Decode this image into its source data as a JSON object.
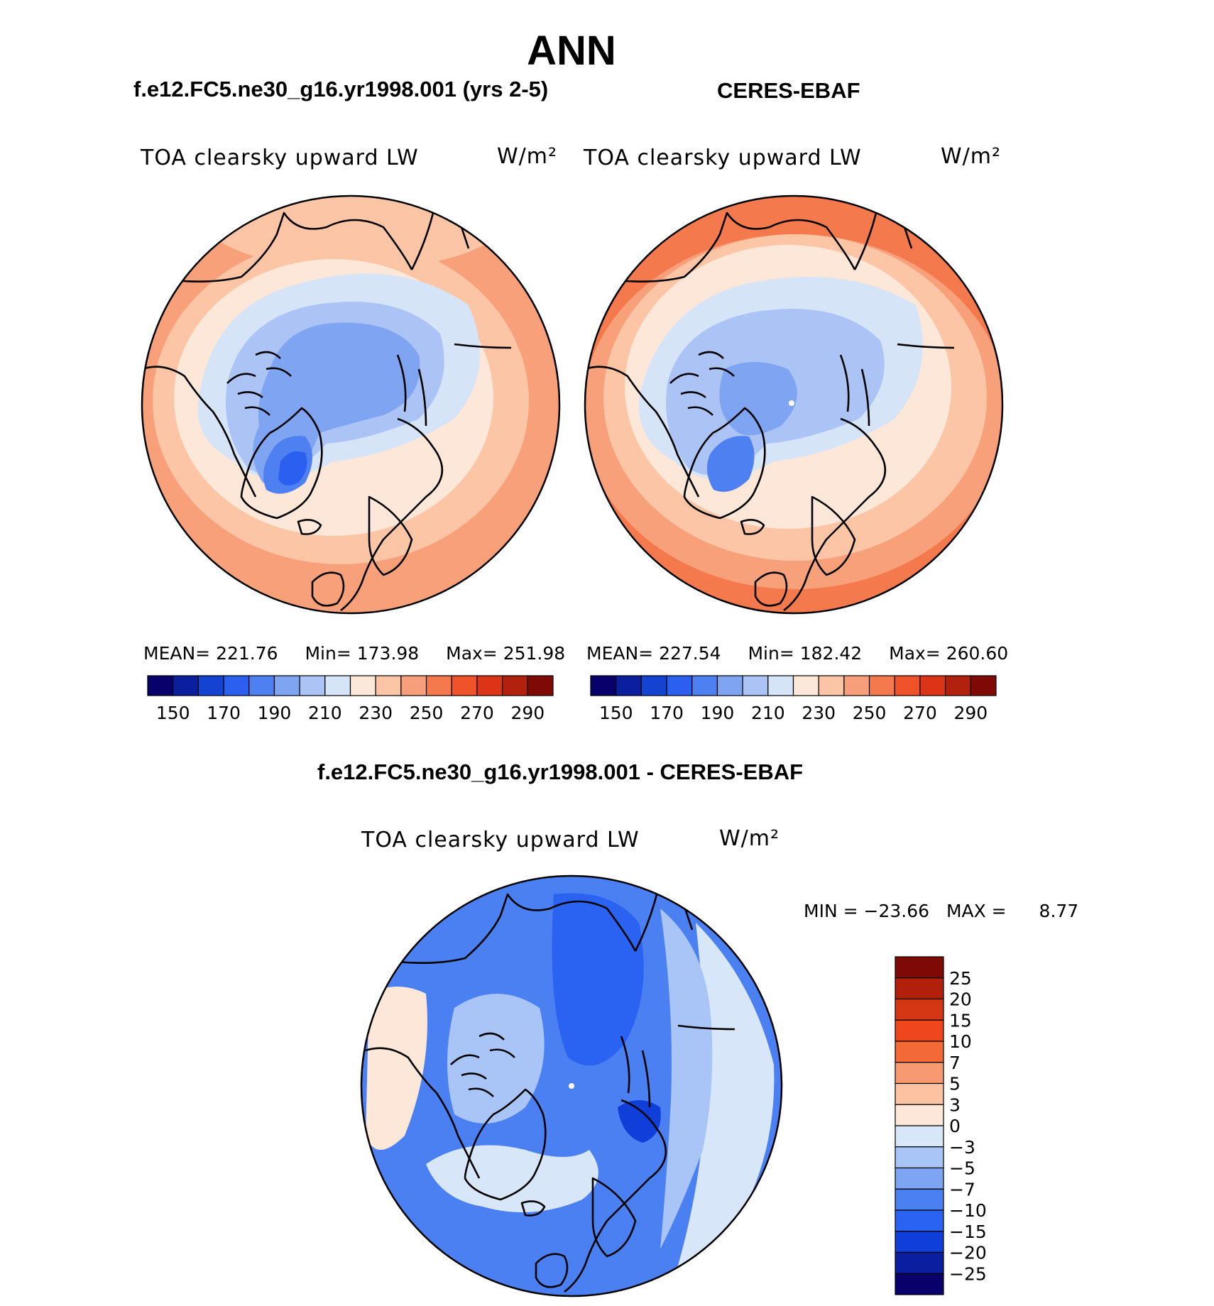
{
  "page": {
    "title": "ANN",
    "case_title": "f.e12.FC5.ne30_g16.yr1998.001 (yrs 2-5)",
    "obs_title": "CERES-EBAF",
    "diff_title": "f.e12.FC5.ne30_g16.yr1998.001 - CERES-EBAF"
  },
  "panels": {
    "model": {
      "variable": "TOA clearsky upward LW",
      "units": "W/m²",
      "mean_label": "MEAN=",
      "mean": "221.76",
      "min_label": "Min=",
      "min": "173.98",
      "max_label": "Max=",
      "max": "251.98"
    },
    "obs": {
      "variable": "TOA clearsky upward LW",
      "units": "W/m²",
      "mean_label": "MEAN=",
      "mean": "227.54",
      "min_label": "Min=",
      "min": "182.42",
      "max_label": "Max=",
      "max": "260.60"
    },
    "diff": {
      "variable": "TOA clearsky upward LW",
      "units": "W/m²",
      "min_label": "MIN =",
      "min": "−23.66",
      "max_label": "MAX =",
      "max": "8.77"
    }
  },
  "colorbars": {
    "abs_colors": [
      "#08006b",
      "#0b1f9e",
      "#1443d2",
      "#2a5ff0",
      "#4f80f2",
      "#7fa4f2",
      "#abc4f5",
      "#d6e4f8",
      "#fde7d8",
      "#fcc6a6",
      "#f79f7a",
      "#f47a4e",
      "#f0522a",
      "#db3416",
      "#b2210d",
      "#7f0a05"
    ],
    "abs_ticks": [
      "150",
      "170",
      "190",
      "210",
      "230",
      "250",
      "270",
      "290"
    ],
    "diff_colors": [
      "#08006b",
      "#0a1fa0",
      "#0f3fd8",
      "#2a62f2",
      "#4a80f2",
      "#7ea4f4",
      "#a9c4f6",
      "#d7e6f8",
      "#fde7d8",
      "#fcc3a2",
      "#f79a72",
      "#f46a35",
      "#f0461c",
      "#d53714",
      "#b2200c",
      "#7f0a05"
    ],
    "diff_ticks": [
      "25",
      "20",
      "15",
      "10",
      "7",
      "5",
      "3",
      "0",
      "−3",
      "−5",
      "−7",
      "−10",
      "−15",
      "−20",
      "−25"
    ]
  },
  "map_colors": {
    "land_outline": "#000000",
    "warm_outer": "#f7a07a",
    "warm_mid": "#fcc6a6",
    "warm_light": "#fde7d8",
    "cool_light": "#d6e4f8",
    "cool_mid": "#abc4f5",
    "cool_dark": "#7fa4f2",
    "cool_deep": "#4f80f2",
    "cool_core": "#2a5ff0",
    "diff_base": "#4a80f2",
    "diff_dark": "#2a62f2",
    "diff_light": "#a9c4f6",
    "diff_pale": "#d7e6f8"
  }
}
